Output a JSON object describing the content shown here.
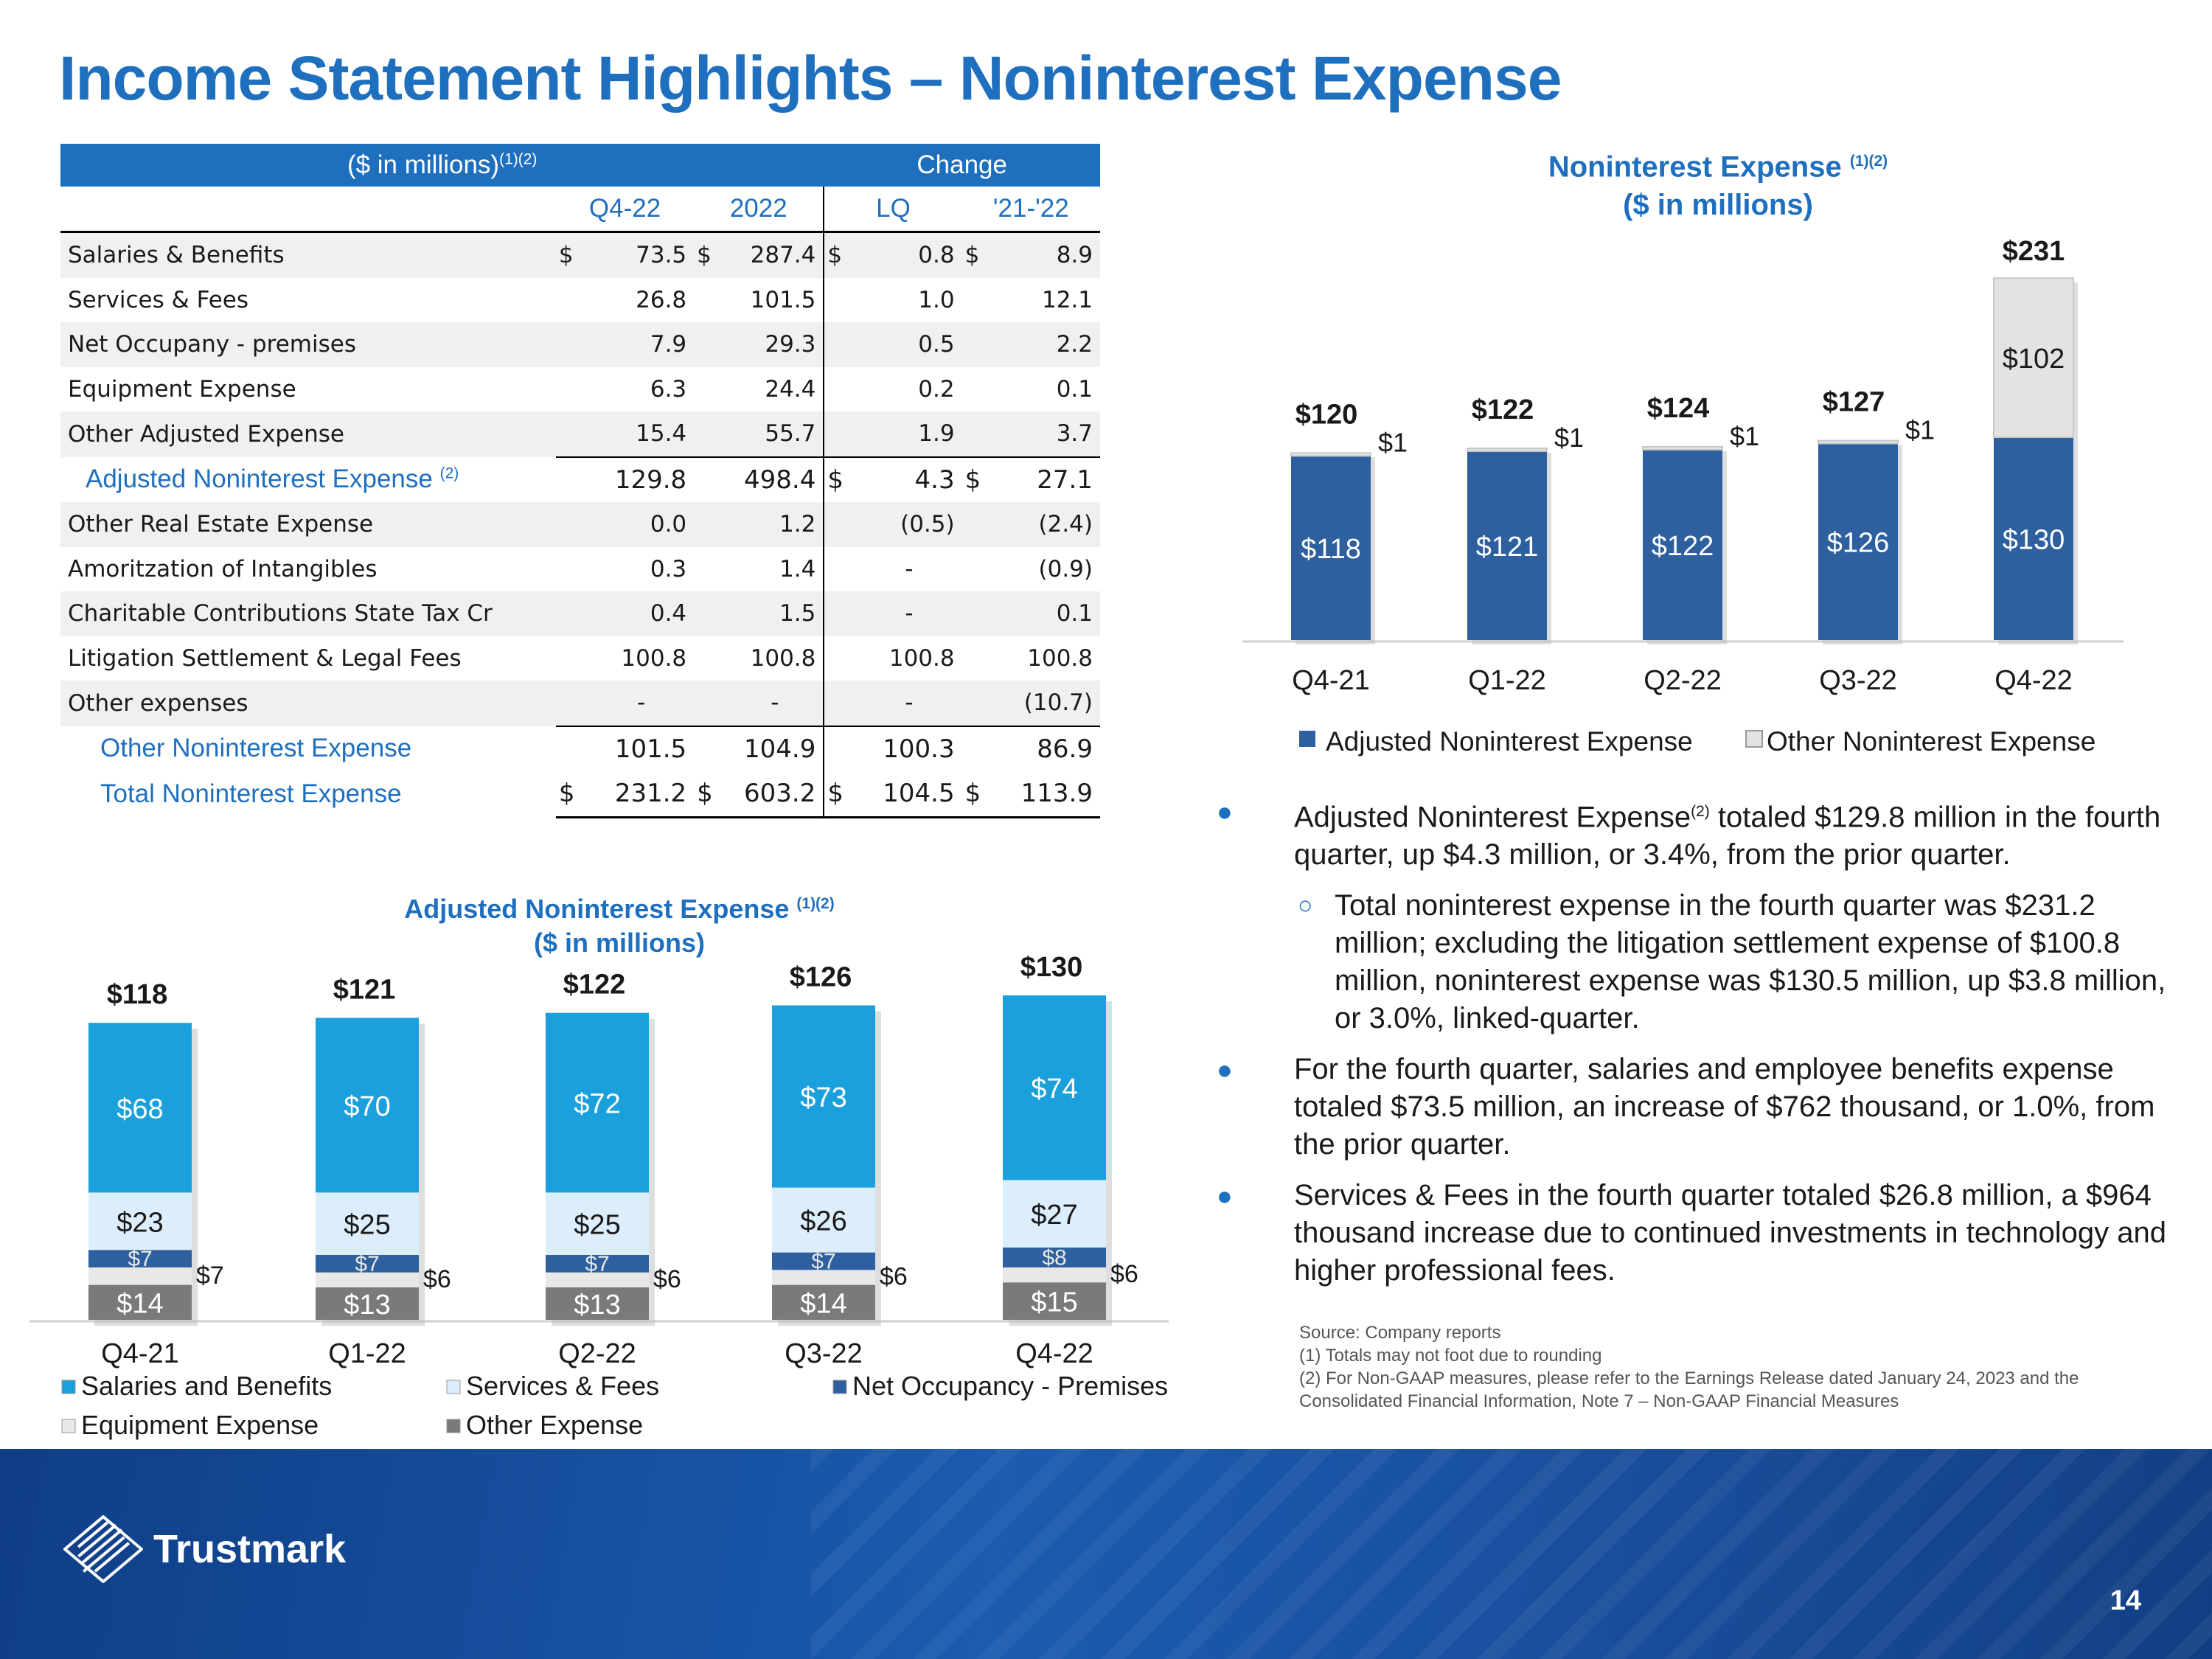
{
  "title": "Income Statement Highlights – Noninterest Expense",
  "table": {
    "units": "($ in millions)",
    "units_sup": "(1)(2)",
    "change_label": "Change",
    "columns": [
      "Q4-22",
      "2022",
      "LQ",
      "'21-'22"
    ],
    "rows": [
      {
        "label": "Salaries & Benefits",
        "cur1": "$",
        "q4": "73.5",
        "cur2": "$",
        "y2022": "287.4",
        "cur3": "$",
        "lq": "0.8",
        "cur4": "$",
        "yy": "8.9"
      },
      {
        "label": "Services & Fees",
        "cur1": "",
        "q4": "26.8",
        "cur2": "",
        "y2022": "101.5",
        "cur3": "",
        "lq": "1.0",
        "cur4": "",
        "yy": "12.1"
      },
      {
        "label": "Net Occupany - premises",
        "cur1": "",
        "q4": "7.9",
        "cur2": "",
        "y2022": "29.3",
        "cur3": "",
        "lq": "0.5",
        "cur4": "",
        "yy": "2.2"
      },
      {
        "label": "Equipment Expense",
        "cur1": "",
        "q4": "6.3",
        "cur2": "",
        "y2022": "24.4",
        "cur3": "",
        "lq": "0.2",
        "cur4": "",
        "yy": "0.1"
      },
      {
        "label": "Other Adjusted Expense",
        "cur1": "",
        "q4": "15.4",
        "cur2": "",
        "y2022": "55.7",
        "cur3": "",
        "lq": "1.9",
        "cur4": "",
        "yy": "3.7"
      },
      {
        "label": "Adjusted Noninterest Expense",
        "sup": "(2)",
        "cur1": "",
        "q4": "129.8",
        "cur2": "",
        "y2022": "498.4",
        "cur3": "$",
        "lq": "4.3",
        "cur4": "$",
        "yy": "27.1"
      },
      {
        "label": "Other Real Estate Expense",
        "cur1": "",
        "q4": "0.0",
        "cur2": "",
        "y2022": "1.2",
        "cur3": "",
        "lq": "(0.5)",
        "cur4": "",
        "yy": "(2.4)"
      },
      {
        "label": "Amoritzation of Intangibles",
        "cur1": "",
        "q4": "0.3",
        "cur2": "",
        "y2022": "1.4",
        "cur3": "",
        "lq": "-",
        "cur4": "",
        "yy": "(0.9)"
      },
      {
        "label": "Charitable Contributions State Tax Cr",
        "cur1": "",
        "q4": "0.4",
        "cur2": "",
        "y2022": "1.5",
        "cur3": "",
        "lq": "-",
        "cur4": "",
        "yy": "0.1"
      },
      {
        "label": "Litigation Settlement & Legal Fees",
        "cur1": "",
        "q4": "100.8",
        "cur2": "",
        "y2022": "100.8",
        "cur3": "",
        "lq": "100.8",
        "cur4": "",
        "yy": "100.8"
      },
      {
        "label": "Other expenses",
        "cur1": "",
        "q4": "-",
        "cur2": "",
        "y2022": "-",
        "cur3": "",
        "lq": "-",
        "cur4": "",
        "yy": "(10.7)"
      },
      {
        "label": "Other Noninterest Expense",
        "cur1": "",
        "q4": "101.5",
        "cur2": "",
        "y2022": "104.9",
        "cur3": "",
        "lq": "100.3",
        "cur4": "",
        "yy": "86.9"
      },
      {
        "label": "Total Noninterest Expense",
        "cur1": "$",
        "q4": "231.2",
        "cur2": "$",
        "y2022": "603.2",
        "cur3": "$",
        "lq": "104.5",
        "cur4": "$",
        "yy": "113.9"
      }
    ]
  },
  "bullets": {
    "b1_pre": "Adjusted Noninterest Expense",
    "b1_sup": "(2)",
    "b1_post": " totaled $129.8 million in the fourth quarter, up $4.3 million, or 3.4%, from the prior quarter.",
    "b1_sub": "Total noninterest expense in the fourth quarter was $231.2 million; excluding the litigation settlement expense of $100.8 million, noninterest expense was $130.5 million, up $3.8 million, or 3.0%, linked-quarter.",
    "b2": "For the fourth quarter, salaries and employee benefits expense totaled $73.5 million, an increase of $762 thousand, or 1.0%, from the prior quarter.",
    "b3": "Services & Fees in the fourth quarter totaled $26.8 million, a $964 thousand increase due to continued investments in technology and higher professional fees."
  },
  "source": {
    "line1": "Source: Company reports",
    "line2": "(1) Totals may not foot due to rounding",
    "line3": "(2) For Non-GAAP measures, please refer to the Earnings Release dated January 24, 2023 and the Consolidated Financial Information, Note 7 – Non-GAAP Financial Measures"
  },
  "footer": {
    "logo_text": "Trustmark",
    "page_number": "14"
  },
  "chart_data": [
    {
      "id": "right",
      "type": "bar",
      "stacked": true,
      "title": "Noninterest Expense",
      "title_sup": "(1)(2)",
      "subtitle": "($ in millions)",
      "categories": [
        "Q4-21",
        "Q1-22",
        "Q2-22",
        "Q3-22",
        "Q4-22"
      ],
      "series": [
        {
          "name": "Adjusted Noninterest Expense",
          "color": "#2e5f9e",
          "values": [
            118,
            121,
            122,
            126,
            130
          ],
          "labels": [
            "$118",
            "$121",
            "$122",
            "$126",
            "$130"
          ]
        },
        {
          "name": "Other Noninterest Expense",
          "color": "#e3e3e3",
          "values": [
            1,
            1,
            1,
            1,
            102
          ],
          "labels": [
            "$1",
            "$1",
            "$1",
            "$1",
            "$102"
          ]
        }
      ],
      "totals": [
        "$120",
        "$122",
        "$124",
        "$127",
        "$231"
      ],
      "legend": "bottom"
    },
    {
      "id": "left",
      "type": "bar",
      "stacked": true,
      "title": "Adjusted Noninterest Expense",
      "title_sup": "(1)(2)",
      "subtitle": "($ in millions)",
      "categories": [
        "Q4-21",
        "Q1-22",
        "Q2-22",
        "Q3-22",
        "Q4-22"
      ],
      "series": [
        {
          "name": "Other Expense",
          "color": "#7a7a7a",
          "values": [
            14,
            13,
            13,
            14,
            15
          ],
          "labels": [
            "$14",
            "$13",
            "$13",
            "$14",
            "$15"
          ]
        },
        {
          "name": "Equipment Expense",
          "color": "#e8e8e8",
          "values": [
            7,
            6,
            6,
            6,
            6
          ],
          "labels": [
            "$7",
            "$6",
            "$6",
            "$6",
            "$6"
          ]
        },
        {
          "name": "Net Occupancy - Premises",
          "color": "#2e5f9e",
          "values": [
            7,
            7,
            7,
            7,
            8
          ],
          "labels": [
            "$7",
            "$7",
            "$7",
            "$7",
            "$8"
          ]
        },
        {
          "name": "Services & Fees",
          "color": "#dcedfb",
          "values": [
            23,
            25,
            25,
            26,
            27
          ],
          "labels": [
            "$23",
            "$25",
            "$25",
            "$26",
            "$27"
          ]
        },
        {
          "name": "Salaries and Benefits",
          "color": "#1aa0dc",
          "values": [
            68,
            70,
            72,
            73,
            74
          ],
          "labels": [
            "$68",
            "$70",
            "$72",
            "$73",
            "$74"
          ]
        }
      ],
      "totals": [
        "$118",
        "$121",
        "$122",
        "$126",
        "$130"
      ],
      "legend_order": [
        "Salaries and Benefits",
        "Services & Fees",
        "Net Occupancy - Premises",
        "Equipment Expense",
        "Other Expense"
      ],
      "legend": "bottom"
    }
  ]
}
